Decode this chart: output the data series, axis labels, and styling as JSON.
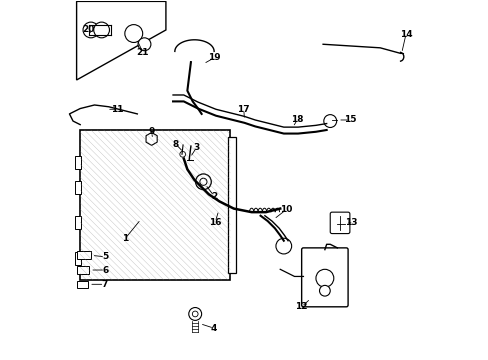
{
  "background_color": "#ffffff",
  "line_color": "#000000",
  "fig_width": 4.89,
  "fig_height": 3.6,
  "dpi": 100,
  "label_data": [
    [
      1,
      0.165,
      0.335,
      0.21,
      0.39
    ],
    [
      2,
      0.415,
      0.455,
      0.39,
      0.488
    ],
    [
      3,
      0.365,
      0.59,
      0.348,
      0.563
    ],
    [
      4,
      0.415,
      0.085,
      0.375,
      0.098
    ],
    [
      5,
      0.11,
      0.285,
      0.072,
      0.289
    ],
    [
      6,
      0.11,
      0.248,
      0.068,
      0.248
    ],
    [
      7,
      0.108,
      0.208,
      0.065,
      0.208
    ],
    [
      8,
      0.308,
      0.6,
      0.329,
      0.578
    ],
    [
      9,
      0.24,
      0.635,
      0.243,
      0.614
    ],
    [
      10,
      0.618,
      0.418,
      0.582,
      0.39
    ],
    [
      11,
      0.145,
      0.698,
      0.115,
      0.698
    ],
    [
      12,
      0.66,
      0.145,
      0.685,
      0.168
    ],
    [
      13,
      0.798,
      0.38,
      0.792,
      0.38
    ],
    [
      14,
      0.952,
      0.908,
      0.94,
      0.855
    ],
    [
      15,
      0.795,
      0.668,
      0.762,
      0.668
    ],
    [
      16,
      0.418,
      0.382,
      0.428,
      0.415
    ],
    [
      17,
      0.498,
      0.698,
      0.5,
      0.668
    ],
    [
      18,
      0.648,
      0.668,
      0.635,
      0.648
    ],
    [
      19,
      0.415,
      0.842,
      0.385,
      0.825
    ],
    [
      20,
      0.062,
      0.92,
      0.075,
      0.908
    ],
    [
      21,
      0.215,
      0.858,
      0.198,
      0.895
    ]
  ]
}
